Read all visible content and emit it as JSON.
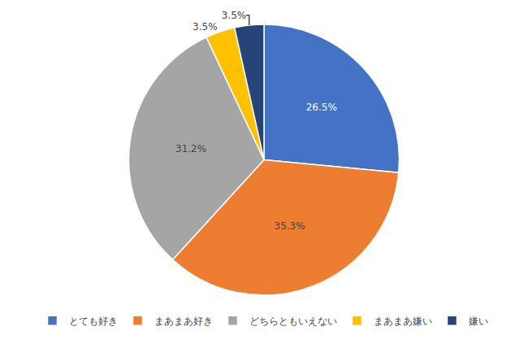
{
  "chart_data": {
    "type": "pie",
    "categories": [
      "とても好き",
      "まあまあ好き",
      "どちらともいえない",
      "まあまあ嫌い",
      "嫌い"
    ],
    "values": [
      26.5,
      35.3,
      31.2,
      3.5,
      3.5
    ],
    "value_labels": [
      "26.5%",
      "35.3%",
      "31.2%",
      "3.5%",
      "3.5%"
    ],
    "colors": [
      "#4472C4",
      "#ED7D31",
      "#A5A5A5",
      "#FFC000",
      "#264478"
    ],
    "data_labels": true,
    "legend": "bottom"
  }
}
